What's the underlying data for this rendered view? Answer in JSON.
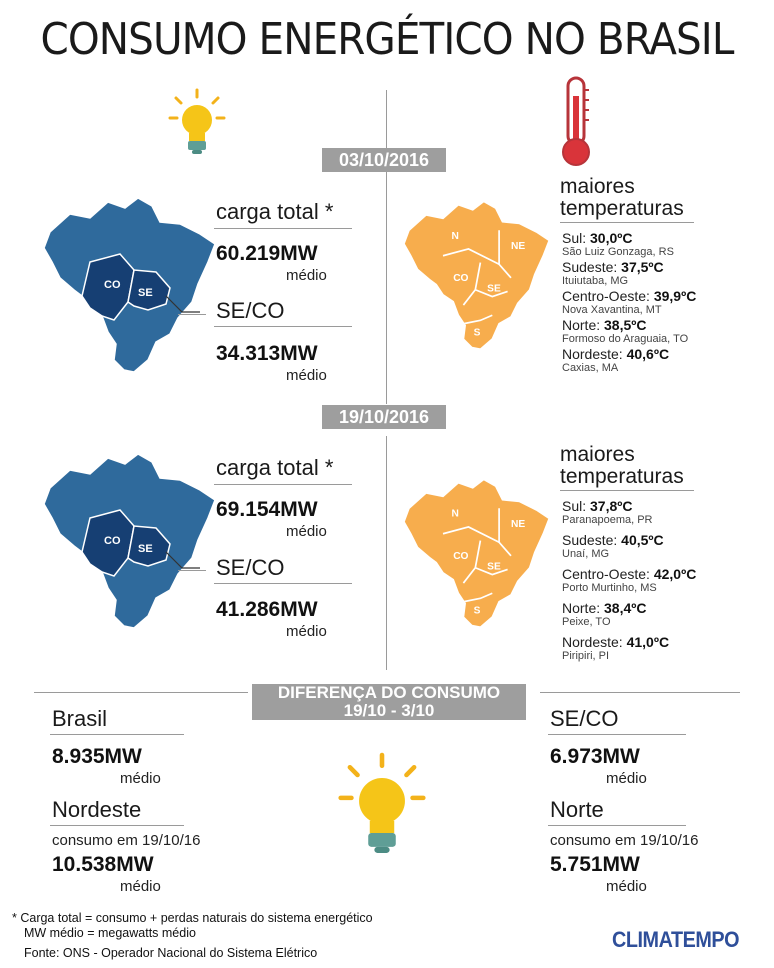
{
  "title": "CONSUMO ENERGÉTICO NO BRASIL",
  "colors": {
    "map_blue": "#2f6a9c",
    "map_dark": "#163f73",
    "map_orange": "#f7ad4d",
    "date_bar": "#9e9e9e",
    "logo": "#2f4f9a"
  },
  "icons": [
    "lightbulb-icon",
    "thermometer-icon",
    "brazil-map-icon"
  ],
  "periods": [
    {
      "date": "03/10/2016",
      "carga_label": "carga total *",
      "carga_value": "60.219MW",
      "carga_unit": "médio",
      "seco_label": "SE/CO",
      "seco_value": "34.313MW",
      "seco_unit": "médio",
      "temps_heading_1": "maiores",
      "temps_heading_2": "temperaturas",
      "temps": [
        {
          "region": "Sul: ",
          "value": "30,0ºC",
          "city": "São Luiz Gonzaga, RS"
        },
        {
          "region": "Sudeste: ",
          "value": "37,5ºC",
          "city": "Ituiutaba, MG"
        },
        {
          "region": "Centro-Oeste: ",
          "value": "39,9ºC",
          "city": "Nova Xavantina, MT"
        },
        {
          "region": "Norte: ",
          "value": "38,5ºC",
          "city": "Formoso do Araguaia, TO"
        },
        {
          "region": "Nordeste: ",
          "value": "40,6ºC",
          "city": "Caxias, MA"
        }
      ]
    },
    {
      "date": "19/10/2016",
      "carga_label": "carga total *",
      "carga_value": "69.154MW",
      "carga_unit": "médio",
      "seco_label": "SE/CO",
      "seco_value": "41.286MW",
      "seco_unit": "médio",
      "temps_heading_1": "maiores",
      "temps_heading_2": "temperaturas",
      "temps": [
        {
          "region": "Sul: ",
          "value": "37,8ºC",
          "city": "Paranapoema, PR"
        },
        {
          "region": "Sudeste: ",
          "value": "40,5ºC",
          "city": "Unaí, MG"
        },
        {
          "region": "Centro-Oeste: ",
          "value": "42,0ºC",
          "city": "Porto Murtinho, MS"
        },
        {
          "region": "Norte: ",
          "value": "38,4ºC",
          "city": "Peixe, TO"
        },
        {
          "region": "Nordeste: ",
          "value": "41,0ºC",
          "city": "Piripiri, PI"
        }
      ]
    }
  ],
  "map_labels": {
    "co": "CO",
    "se": "SE",
    "n": "N",
    "ne": "NE",
    "s": "S"
  },
  "diff": {
    "title_1": "DIFERENÇA DO CONSUMO",
    "title_2": "19/10 - 3/10",
    "brasil_label": "Brasil",
    "brasil_value": "8.935MW",
    "brasil_unit": "médio",
    "nordeste_label": "Nordeste",
    "nordeste_sub": "consumo em 19/10/16",
    "nordeste_value": "10.538MW",
    "nordeste_unit": "médio",
    "seco_label": "SE/CO",
    "seco_value": "6.973MW",
    "seco_unit": "médio",
    "norte_label": "Norte",
    "norte_sub": "consumo em 19/10/16",
    "norte_value": "5.751MW",
    "norte_unit": "médio"
  },
  "footer": {
    "note_1": "* Carga total = consumo + perdas naturais do sistema energético",
    "note_2": "MW médio = megawatts médio",
    "source": "Fonte: ONS - Operador Nacional do Sistema Elétrico"
  },
  "logo": "CLIMATEMPO"
}
